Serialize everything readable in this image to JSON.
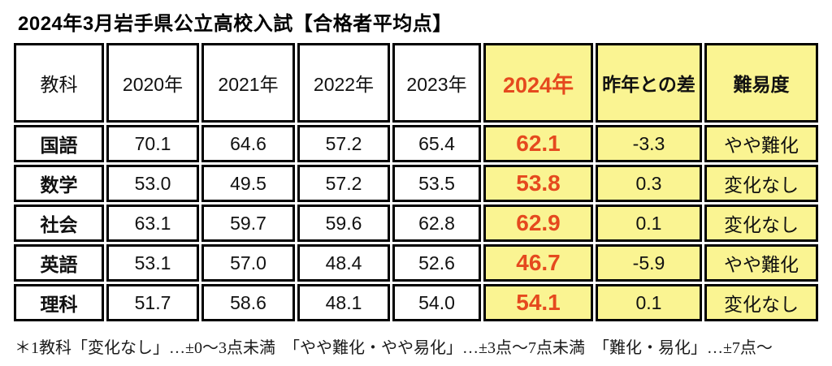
{
  "title": "2024年3月岩手県公立高校入試【合格者平均点】",
  "chart_data": {
    "type": "table",
    "title": "2024年3月岩手県公立高校入試【合格者平均点】",
    "columns": [
      "教科",
      "2020年",
      "2021年",
      "2022年",
      "2023年",
      "2024年",
      "昨年との差",
      "難易度"
    ],
    "rows": [
      [
        "国語",
        "70.1",
        "64.6",
        "57.2",
        "65.4",
        "62.1",
        "-3.3",
        "やや難化"
      ],
      [
        "数学",
        "53.0",
        "49.5",
        "57.2",
        "53.5",
        "53.8",
        "0.3",
        "変化なし"
      ],
      [
        "社会",
        "63.1",
        "59.7",
        "59.6",
        "62.8",
        "62.9",
        "0.1",
        "変化なし"
      ],
      [
        "英語",
        "53.1",
        "57.0",
        "48.4",
        "52.6",
        "46.7",
        "-5.9",
        "やや難化"
      ],
      [
        "理科",
        "51.7",
        "58.6",
        "48.1",
        "54.0",
        "54.1",
        "0.1",
        "変化なし"
      ]
    ],
    "highlighted_columns": [
      "2024年",
      "昨年との差",
      "難易度"
    ],
    "legend_position": "none",
    "grid": "on"
  },
  "footnote": "＊1教科「変化なし」…±0〜3点未満　「やや難化・やや易化」…±3点〜7点未満　「難化・易化」…±7点〜",
  "colors": {
    "highlight_bg": "#FAF492",
    "accent_red": "#E5491E",
    "border": "#000000",
    "text": "#111111",
    "background": "#FFFFFF"
  }
}
